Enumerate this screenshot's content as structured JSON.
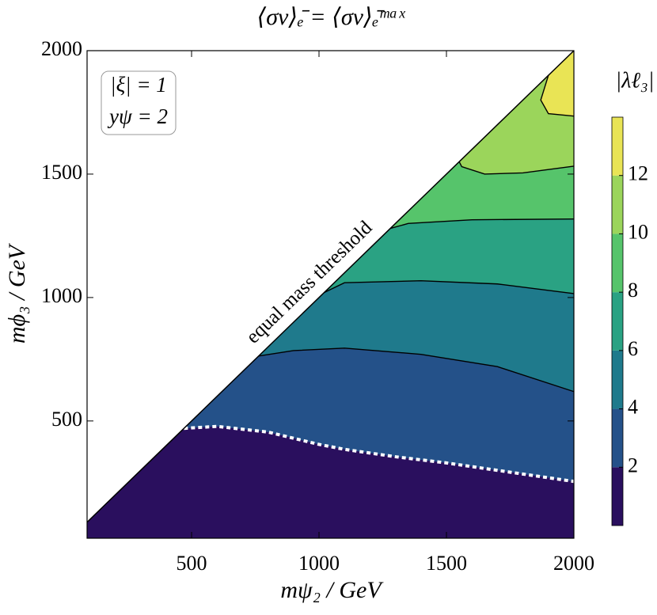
{
  "chart_data": {
    "type": "contour",
    "title": "⟨σv⟩ₑ̄ = ⟨σv⟩ₑ̄ᵐᵃˣ",
    "x_label": "mψ₂ / GeV",
    "y_label": "mϕ₃ / GeV",
    "colorbar_label": "|λℓ₃|",
    "annotations": [
      "|ξ| = 1",
      "yψ = 2"
    ],
    "threshold_label": "equal mass threshold",
    "threshold_line": {
      "x": [
        90,
        2000
      ],
      "y": [
        90,
        2000
      ]
    },
    "xlim": [
      90,
      2000
    ],
    "ylim": [
      25,
      2000
    ],
    "xticks": [
      500,
      1000,
      1500,
      2000
    ],
    "yticks": [
      500,
      1000,
      1500,
      2000
    ],
    "levels": [
      0,
      2,
      4,
      6,
      8,
      10,
      12,
      14
    ],
    "colorbar_ticks": [
      2,
      4,
      6,
      8,
      10,
      12
    ],
    "colors": [
      "#2a0f5e",
      "#245189",
      "#1f7a8c",
      "#2aa283",
      "#56c46b",
      "#9bd55b",
      "#e9e455"
    ],
    "contours": [
      {
        "level": 2,
        "dashed": true,
        "x": [
          470,
          600,
          800,
          900,
          1000,
          1100,
          1300,
          1500,
          1700,
          2000
        ],
        "y": [
          470,
          478,
          455,
          430,
          405,
          385,
          355,
          330,
          300,
          255
        ]
      },
      {
        "level": 4,
        "x": [
          763,
          900,
          1100,
          1400,
          1700,
          2000
        ],
        "y": [
          763,
          785,
          795,
          770,
          720,
          619
        ]
      },
      {
        "level": 6,
        "x": [
          1020,
          1100,
          1400,
          1700,
          2000
        ],
        "y": [
          1020,
          1060,
          1068,
          1055,
          1016
        ]
      },
      {
        "level": 8,
        "x": [
          1280,
          1350,
          1600,
          2000
        ],
        "y": [
          1280,
          1300,
          1315,
          1318
        ]
      },
      {
        "level": 10,
        "x": [
          1550,
          1560,
          1650,
          1800,
          2000
        ],
        "y": [
          1550,
          1530,
          1500,
          1505,
          1532
        ]
      },
      {
        "level": 12,
        "x": [
          1900,
          1870,
          1900,
          2000
        ],
        "y": [
          1900,
          1800,
          1745,
          1735
        ]
      }
    ]
  }
}
